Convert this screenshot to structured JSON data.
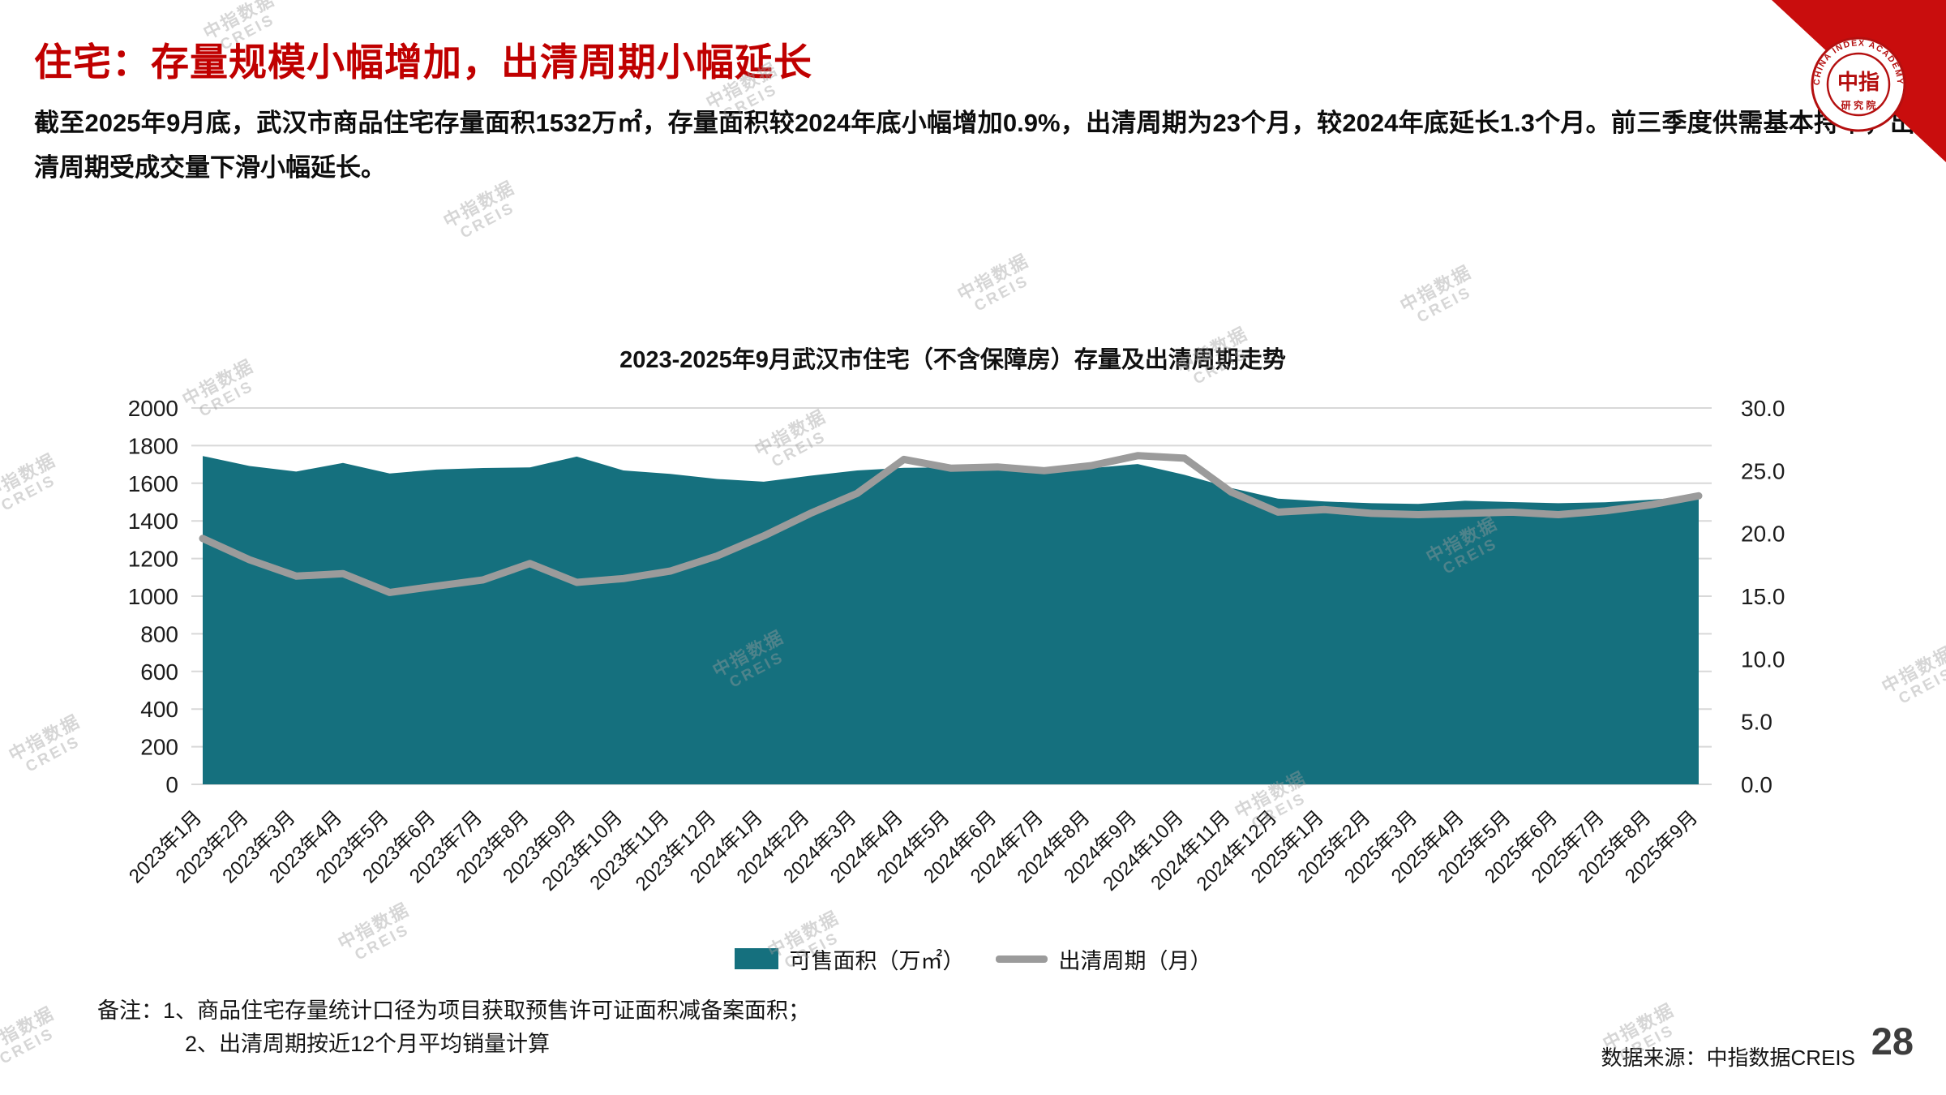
{
  "page": {
    "title": "住宅：存量规模小幅增加，出清周期小幅延长",
    "paragraph": "截至2025年9月底，武汉市商品住宅存量面积1532万㎡，存量面积较2024年底小幅增加0.9%，出清周期为23个月，较2024年底延长1.3个月。前三季度供需基本持平，出清周期受成交量下滑小幅延长。",
    "page_number": "28",
    "data_source": "数据来源：中指数据CREIS"
  },
  "notes": {
    "line1": "备注：1、商品住宅存量统计口径为项目获取预售许可证面积减备案面积；",
    "line2": "2、出清周期按近12个月平均销量计算"
  },
  "watermark": {
    "line1": "中指数据",
    "line2": "CREIS"
  },
  "logo": {
    "arc_text": "CHINA INDEX ACADEMY",
    "center_text": "中指",
    "bottom_text": "研 究 院"
  },
  "chart_data": {
    "type": "area",
    "title": "2023-2025年9月武汉市住宅（不含保障房）存量及出清周期走势",
    "grid": "horizontal",
    "legend_position": "bottom",
    "categories": [
      "2023年1月",
      "2023年2月",
      "2023年3月",
      "2023年4月",
      "2023年5月",
      "2023年6月",
      "2023年7月",
      "2023年8月",
      "2023年9月",
      "2023年10月",
      "2023年11月",
      "2023年12月",
      "2024年1月",
      "2024年2月",
      "2024年3月",
      "2024年4月",
      "2024年5月",
      "2024年6月",
      "2024年7月",
      "2024年8月",
      "2024年9月",
      "2024年10月",
      "2024年11月",
      "2024年12月",
      "2025年1月",
      "2025年2月",
      "2025年3月",
      "2025年4月",
      "2025年5月",
      "2025年6月",
      "2025年7月",
      "2025年8月",
      "2025年9月"
    ],
    "series": [
      {
        "name": "可售面积（万㎡）",
        "type": "area",
        "axis": "left",
        "color": "#15707E",
        "values": [
          1745,
          1692,
          1662,
          1708,
          1652,
          1673,
          1681,
          1684,
          1742,
          1668,
          1650,
          1623,
          1608,
          1640,
          1668,
          1682,
          1685,
          1680,
          1682,
          1680,
          1702,
          1645,
          1575,
          1518,
          1503,
          1494,
          1490,
          1507,
          1500,
          1494,
          1499,
          1513,
          1532
        ]
      },
      {
        "name": "出清周期（月）",
        "type": "line",
        "axis": "right",
        "color": "#9B9B9B",
        "values": [
          19.6,
          17.9,
          16.6,
          16.8,
          15.3,
          15.8,
          16.3,
          17.6,
          16.1,
          16.4,
          17.0,
          18.2,
          19.8,
          21.6,
          23.2,
          25.9,
          25.2,
          25.3,
          25.0,
          25.4,
          26.2,
          26.0,
          23.3,
          21.7,
          21.9,
          21.6,
          21.5,
          21.6,
          21.7,
          21.5,
          21.8,
          22.3,
          23.0
        ]
      }
    ],
    "left_axis": {
      "min": 0,
      "max": 2000,
      "tick_step": 200,
      "ticks": [
        "0",
        "200",
        "400",
        "600",
        "800",
        "1000",
        "1200",
        "1400",
        "1600",
        "1800",
        "2000"
      ]
    },
    "right_axis": {
      "min": 0,
      "max": 30,
      "tick_step": 5,
      "ticks": [
        "0.0",
        "5.0",
        "10.0",
        "15.0",
        "20.0",
        "25.0",
        "30.0"
      ]
    }
  }
}
